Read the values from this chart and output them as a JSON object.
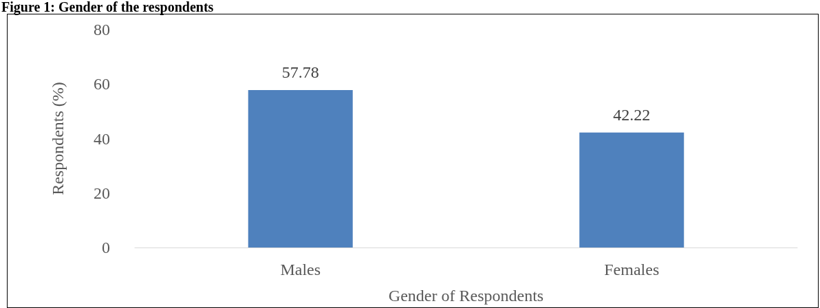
{
  "chart_data": {
    "type": "bar",
    "title": "Figure 1: Gender of the respondents",
    "categories": [
      "Males",
      "Females"
    ],
    "values": [
      57.78,
      42.22
    ],
    "color": "#4f81bd",
    "xlabel": "Gender of Respondents",
    "ylabel": "Respondents (%)",
    "ylim": [
      0,
      80
    ],
    "yticks": [
      0,
      20,
      40,
      60,
      80
    ],
    "grid": false,
    "data_labels": true
  }
}
